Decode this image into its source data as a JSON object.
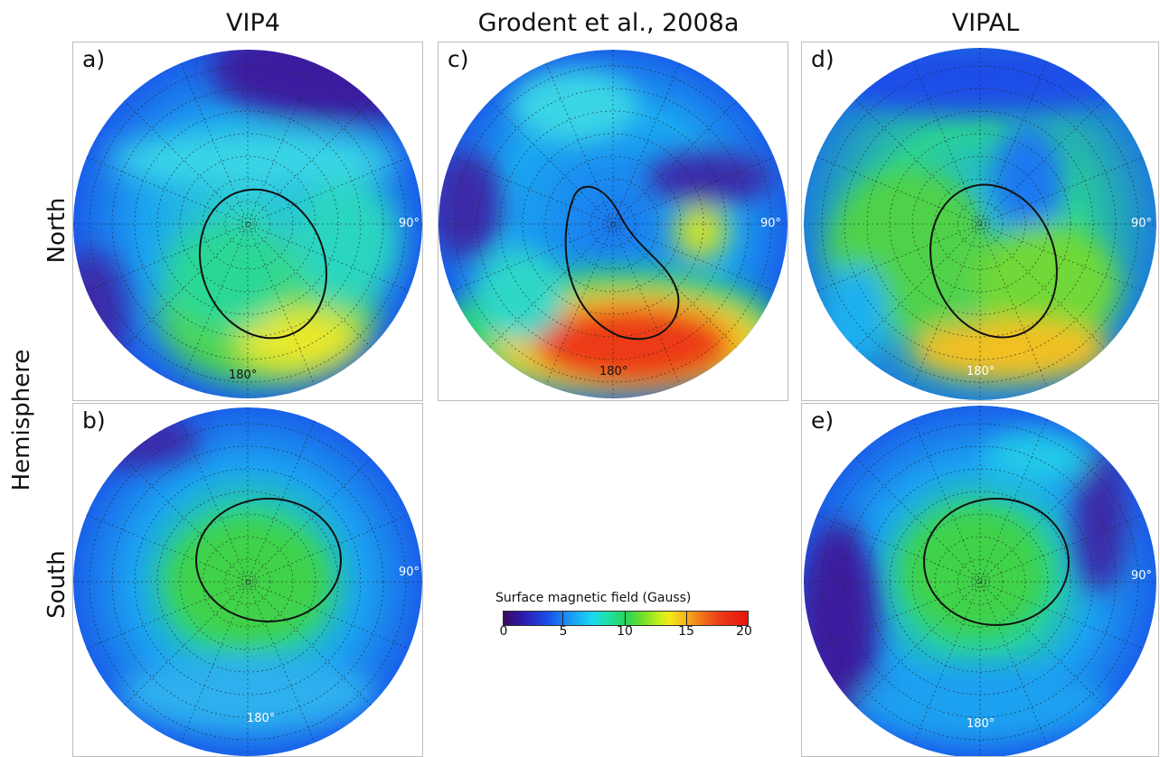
{
  "titles": {
    "col1": "VIP4",
    "col2": "Grodent et al., 2008a",
    "col3": "VIPAL"
  },
  "row_labels": {
    "north": "North",
    "hemisphere": "Hemisphere",
    "south": "South"
  },
  "panels": {
    "a": {
      "label": "a)",
      "lon90": "90°",
      "lon180": "180°",
      "model": "VIP4",
      "hemisphere": "North"
    },
    "b": {
      "label": "b)",
      "lon90": "90°",
      "lon180": "180°",
      "model": "VIP4",
      "hemisphere": "South"
    },
    "c": {
      "label": "c)",
      "lon90": "90°",
      "lon180": "180°",
      "model": "Grodent et al., 2008a",
      "hemisphere": "North"
    },
    "d": {
      "label": "d)",
      "lon90": "90°",
      "lon180": "180°",
      "model": "VIPAL",
      "hemisphere": "North"
    },
    "e": {
      "label": "e)",
      "lon90": "90°",
      "lon180": "180°",
      "model": "VIPAL",
      "hemisphere": "South"
    }
  },
  "colorbar": {
    "title": "Surface magnetic field (Gauss)",
    "ticks": [
      "0",
      "5",
      "10",
      "15",
      "20"
    ],
    "min": 0,
    "max": 20
  },
  "colors": {
    "dark_purple": "#3b0a5c",
    "blue": "#1a4ee8",
    "cyan": "#19d7f0",
    "green": "#27d45a",
    "yellow": "#f2e91a",
    "red": "#e8140e"
  }
}
